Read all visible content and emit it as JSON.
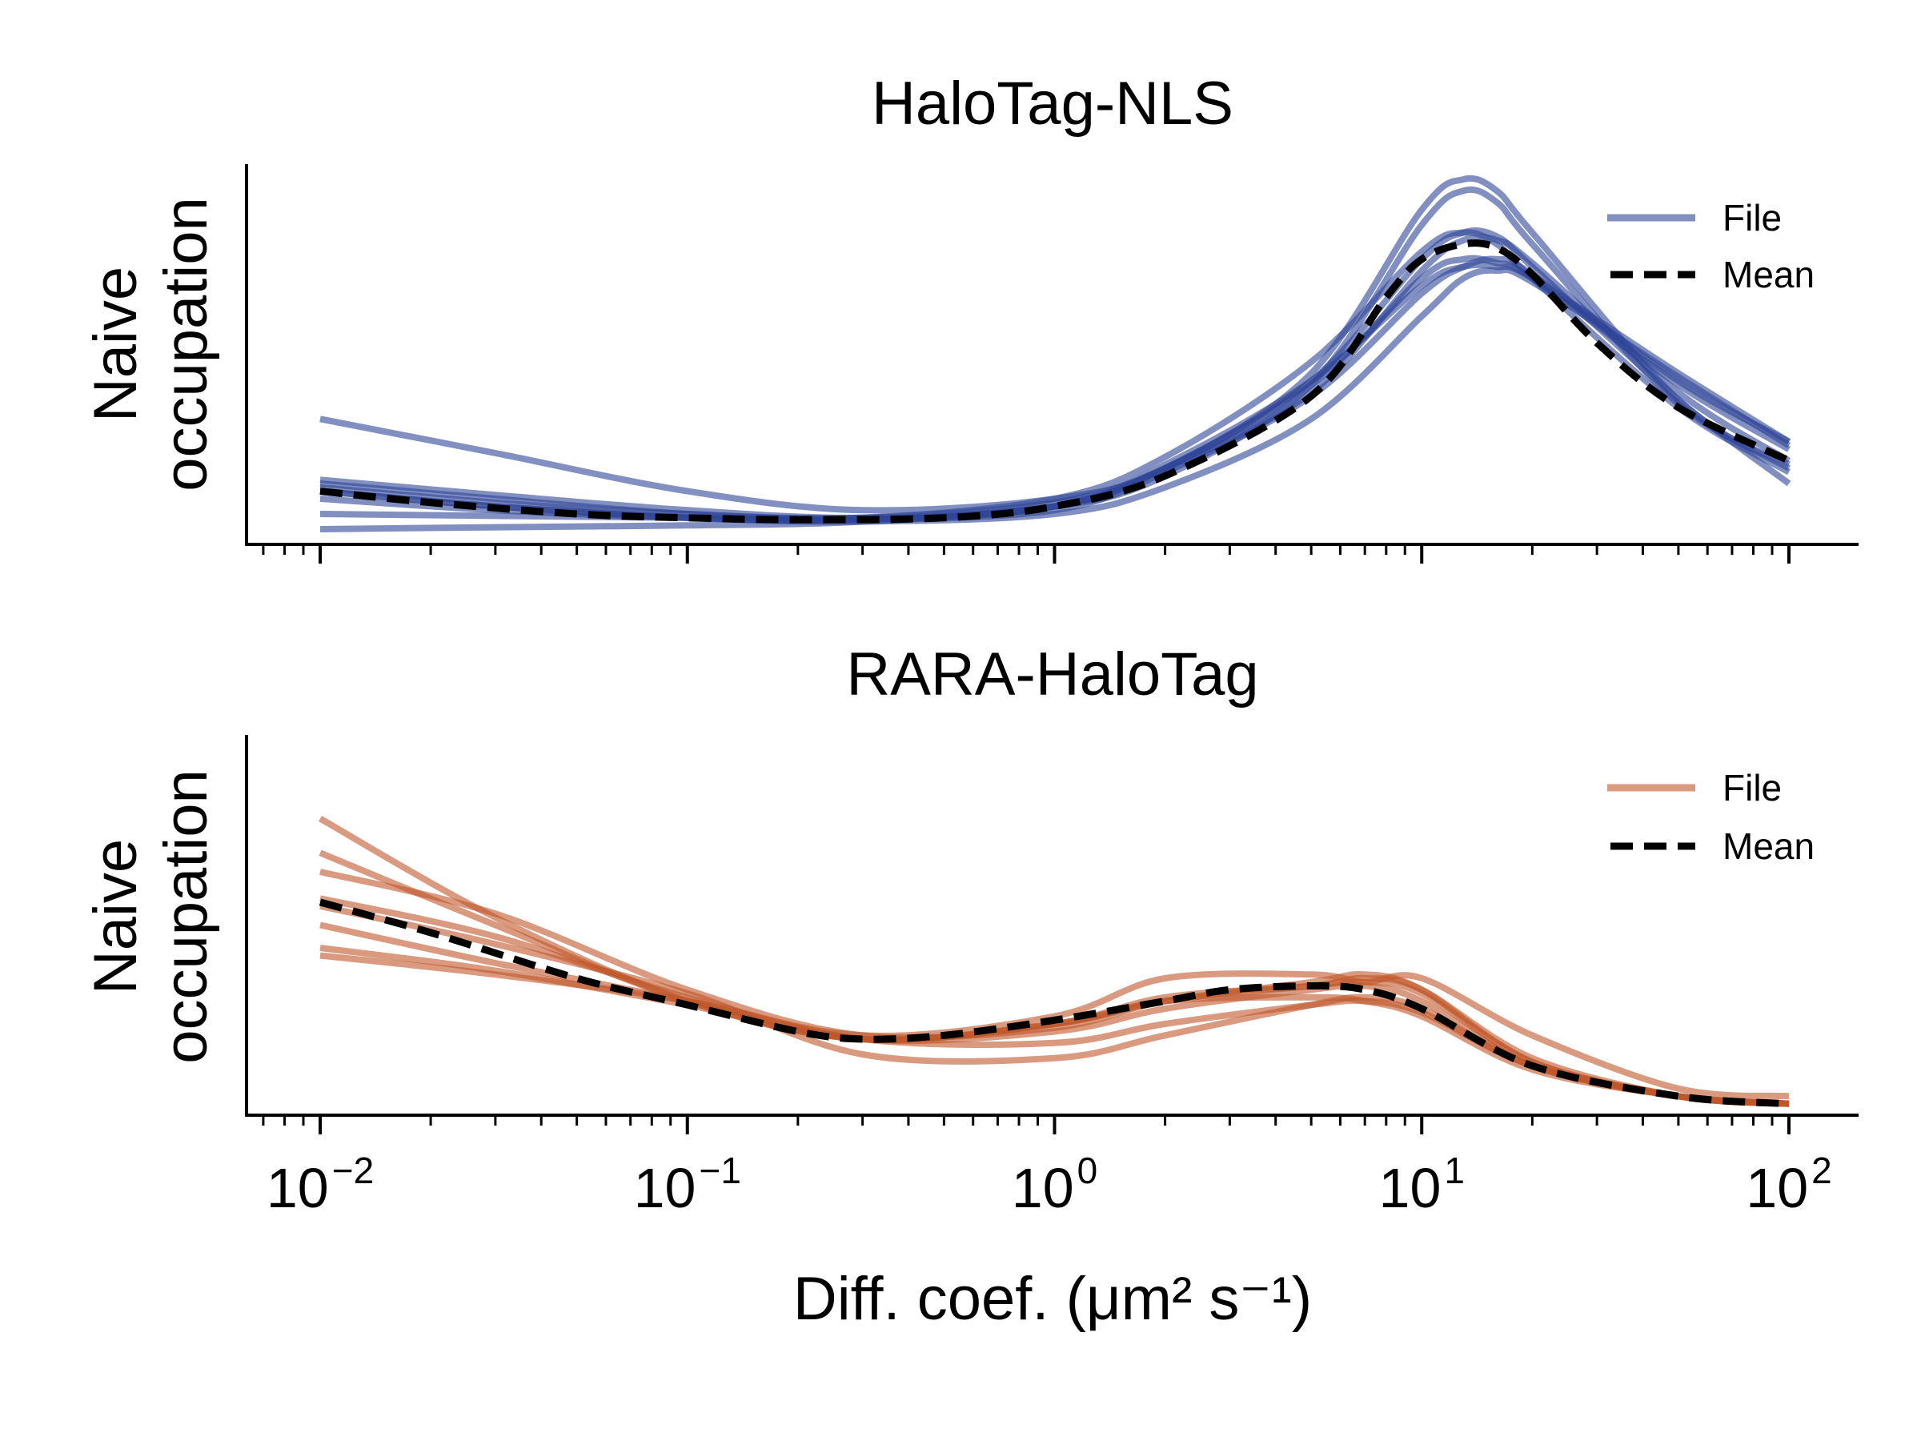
{
  "x_axis_label": "Diff. coef. (μm² s⁻¹)",
  "chart_data": [
    {
      "type": "line",
      "title": "HaloTag-NLS",
      "ylabel": [
        "Naive",
        "occupation"
      ],
      "xscale": "log",
      "xlim": [
        0.0063,
        158
      ],
      "ylim": [
        0,
        1.0
      ],
      "xticks": [
        0.01,
        0.1,
        1,
        10,
        100
      ],
      "xtick_labels": [
        {
          "base": "10",
          "exp": "−2"
        },
        {
          "base": "10",
          "exp": "−1"
        },
        {
          "base": "10",
          "exp": "0"
        },
        {
          "base": "10",
          "exp": "1"
        },
        {
          "base": "10",
          "exp": "2"
        }
      ],
      "legend": {
        "position": "top-right",
        "items": [
          {
            "label": "File",
            "style": "solid",
            "color": "#2e4597"
          },
          {
            "label": "Mean",
            "style": "dashed",
            "color": "#000000"
          }
        ]
      },
      "file_color": "#2e4597",
      "mean_color": "#000000",
      "mean": {
        "x": [
          0.01,
          0.02,
          0.05,
          0.1,
          0.2,
          0.5,
          1,
          2,
          5,
          8,
          10,
          13,
          16,
          20,
          30,
          50,
          100
        ],
        "y": [
          0.14,
          0.11,
          0.08,
          0.07,
          0.065,
          0.07,
          0.1,
          0.18,
          0.39,
          0.65,
          0.75,
          0.79,
          0.78,
          0.71,
          0.53,
          0.36,
          0.22
        ]
      },
      "files": [
        {
          "x": [
            0.01,
            0.03,
            0.1,
            0.3,
            1,
            2,
            5,
            10,
            13,
            16,
            20,
            50,
            100
          ],
          "y": [
            0.33,
            0.24,
            0.14,
            0.09,
            0.12,
            0.2,
            0.45,
            0.88,
            0.96,
            0.93,
            0.82,
            0.38,
            0.2
          ]
        },
        {
          "x": [
            0.01,
            0.03,
            0.1,
            0.3,
            1,
            2,
            5,
            10,
            13,
            16,
            20,
            50,
            100
          ],
          "y": [
            0.17,
            0.13,
            0.09,
            0.07,
            0.1,
            0.18,
            0.42,
            0.84,
            0.93,
            0.9,
            0.79,
            0.37,
            0.21
          ]
        },
        {
          "x": [
            0.01,
            0.03,
            0.1,
            0.3,
            1,
            2,
            5,
            10,
            13,
            16,
            20,
            50,
            100
          ],
          "y": [
            0.16,
            0.12,
            0.08,
            0.07,
            0.12,
            0.23,
            0.48,
            0.77,
            0.82,
            0.79,
            0.7,
            0.36,
            0.19
          ]
        },
        {
          "x": [
            0.01,
            0.03,
            0.1,
            0.3,
            1,
            2,
            5,
            10,
            13,
            16,
            20,
            50,
            100
          ],
          "y": [
            0.15,
            0.11,
            0.08,
            0.07,
            0.11,
            0.2,
            0.4,
            0.72,
            0.8,
            0.8,
            0.74,
            0.4,
            0.22
          ]
        },
        {
          "x": [
            0.01,
            0.03,
            0.1,
            0.3,
            1,
            2,
            5,
            10,
            13,
            16,
            20,
            50,
            100
          ],
          "y": [
            0.14,
            0.1,
            0.07,
            0.065,
            0.1,
            0.2,
            0.43,
            0.75,
            0.82,
            0.81,
            0.73,
            0.38,
            0.16
          ]
        },
        {
          "x": [
            0.01,
            0.03,
            0.1,
            0.3,
            1,
            2,
            5,
            10,
            13,
            16,
            20,
            50,
            100
          ],
          "y": [
            0.14,
            0.1,
            0.07,
            0.06,
            0.08,
            0.15,
            0.33,
            0.6,
            0.7,
            0.72,
            0.69,
            0.44,
            0.26
          ]
        },
        {
          "x": [
            0.01,
            0.03,
            0.1,
            0.3,
            1,
            2,
            5,
            10,
            13,
            16,
            20,
            50,
            100
          ],
          "y": [
            0.12,
            0.09,
            0.07,
            0.065,
            0.09,
            0.19,
            0.39,
            0.66,
            0.73,
            0.75,
            0.71,
            0.43,
            0.27
          ]
        },
        {
          "x": [
            0.01,
            0.03,
            0.1,
            0.3,
            1,
            2,
            5,
            10,
            13,
            16,
            20,
            50,
            100
          ],
          "y": [
            0.08,
            0.075,
            0.07,
            0.065,
            0.1,
            0.2,
            0.42,
            0.7,
            0.75,
            0.74,
            0.7,
            0.42,
            0.25
          ]
        },
        {
          "x": [
            0.01,
            0.03,
            0.1,
            0.3,
            1,
            2,
            5,
            10,
            13,
            16,
            20,
            50,
            100
          ],
          "y": [
            0.04,
            0.045,
            0.05,
            0.06,
            0.1,
            0.21,
            0.43,
            0.68,
            0.73,
            0.73,
            0.7,
            0.45,
            0.27
          ]
        }
      ]
    },
    {
      "type": "line",
      "title": "RARA-HaloTag",
      "ylabel": [
        "Naive",
        "occupation"
      ],
      "xscale": "log",
      "xlim": [
        0.0063,
        158
      ],
      "ylim": [
        0,
        1.0
      ],
      "xticks": [
        0.01,
        0.1,
        1,
        10,
        100
      ],
      "xtick_labels": [
        {
          "base": "10",
          "exp": "−2"
        },
        {
          "base": "10",
          "exp": "−1"
        },
        {
          "base": "10",
          "exp": "0"
        },
        {
          "base": "10",
          "exp": "1"
        },
        {
          "base": "10",
          "exp": "2"
        }
      ],
      "legend": {
        "position": "top-right",
        "items": [
          {
            "label": "File",
            "style": "solid",
            "color": "#c0562a"
          },
          {
            "label": "Mean",
            "style": "dashed",
            "color": "#000000"
          }
        ]
      },
      "file_color": "#c0562a",
      "mean_color": "#000000",
      "mean": {
        "x": [
          0.01,
          0.02,
          0.05,
          0.1,
          0.2,
          0.3,
          0.5,
          1,
          2,
          3,
          5,
          7,
          10,
          20,
          50,
          100
        ],
        "y": [
          0.56,
          0.48,
          0.36,
          0.29,
          0.22,
          0.2,
          0.21,
          0.25,
          0.3,
          0.33,
          0.34,
          0.33,
          0.28,
          0.13,
          0.05,
          0.03
        ]
      },
      "files": [
        {
          "x": [
            0.01,
            0.03,
            0.1,
            0.3,
            1,
            2,
            5,
            7,
            10,
            20,
            50,
            100
          ],
          "y": [
            0.78,
            0.52,
            0.3,
            0.2,
            0.24,
            0.3,
            0.35,
            0.37,
            0.33,
            0.14,
            0.05,
            0.03
          ]
        },
        {
          "x": [
            0.01,
            0.03,
            0.1,
            0.3,
            1,
            2,
            5,
            7,
            10,
            20,
            50,
            100
          ],
          "y": [
            0.69,
            0.5,
            0.3,
            0.2,
            0.24,
            0.31,
            0.34,
            0.36,
            0.33,
            0.15,
            0.05,
            0.03
          ]
        },
        {
          "x": [
            0.01,
            0.03,
            0.1,
            0.3,
            1,
            2,
            5,
            7,
            10,
            20,
            50,
            100
          ],
          "y": [
            0.64,
            0.53,
            0.33,
            0.21,
            0.23,
            0.3,
            0.34,
            0.35,
            0.32,
            0.14,
            0.05,
            0.03
          ]
        },
        {
          "x": [
            0.01,
            0.03,
            0.1,
            0.3,
            1,
            2,
            5,
            7,
            10,
            20,
            50,
            100
          ],
          "y": [
            0.57,
            0.47,
            0.31,
            0.21,
            0.26,
            0.36,
            0.37,
            0.35,
            0.36,
            0.21,
            0.07,
            0.05
          ]
        },
        {
          "x": [
            0.01,
            0.03,
            0.1,
            0.3,
            1,
            2,
            5,
            7,
            10,
            20,
            50,
            100
          ],
          "y": [
            0.5,
            0.4,
            0.3,
            0.2,
            0.22,
            0.28,
            0.33,
            0.34,
            0.3,
            0.13,
            0.05,
            0.03
          ]
        },
        {
          "x": [
            0.01,
            0.03,
            0.1,
            0.3,
            1,
            2,
            5,
            7,
            10,
            20,
            50,
            100
          ],
          "y": [
            0.44,
            0.38,
            0.29,
            0.2,
            0.24,
            0.3,
            0.31,
            0.3,
            0.26,
            0.12,
            0.05,
            0.03
          ]
        },
        {
          "x": [
            0.01,
            0.03,
            0.1,
            0.3,
            1,
            2,
            5,
            7,
            10,
            20,
            50,
            100
          ],
          "y": [
            0.42,
            0.37,
            0.3,
            0.2,
            0.19,
            0.24,
            0.29,
            0.3,
            0.27,
            0.13,
            0.05,
            0.03
          ]
        },
        {
          "x": [
            0.01,
            0.03,
            0.1,
            0.3,
            1,
            2,
            5,
            7,
            10,
            20,
            50,
            100
          ],
          "y": [
            0.55,
            0.45,
            0.32,
            0.16,
            0.15,
            0.21,
            0.29,
            0.31,
            0.28,
            0.13,
            0.05,
            0.03
          ]
        }
      ]
    }
  ]
}
